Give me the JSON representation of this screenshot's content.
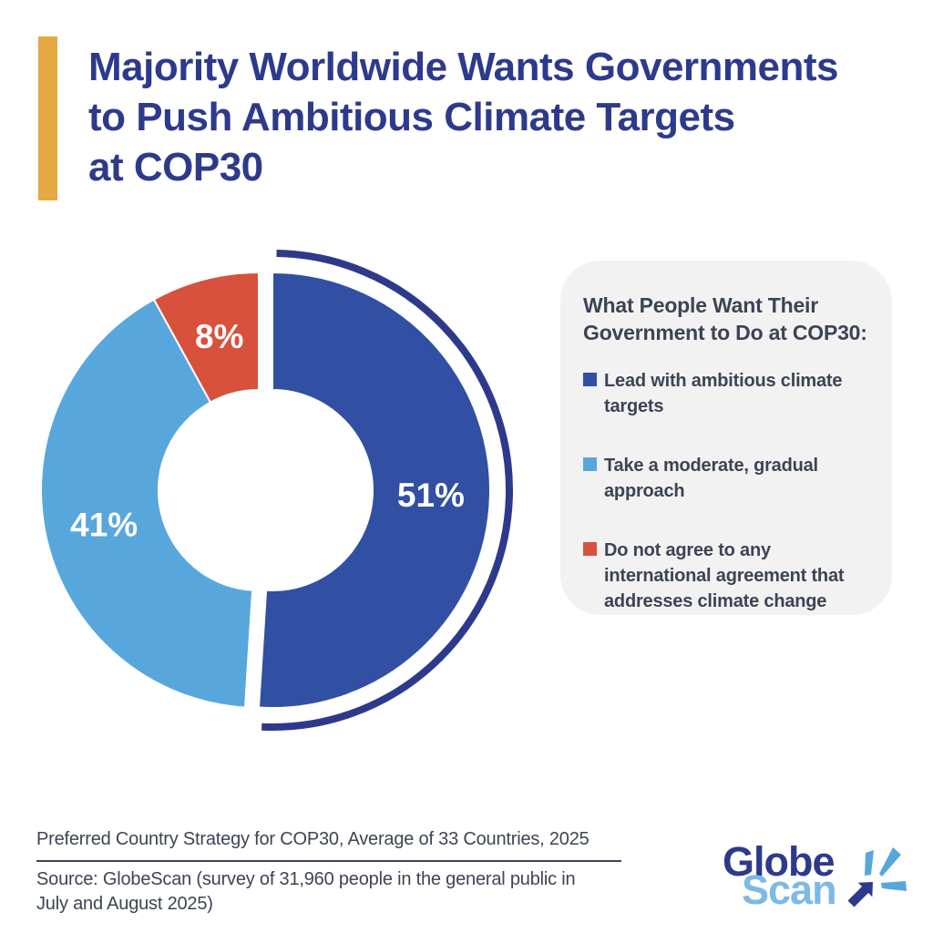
{
  "title": {
    "text": "Majority Worldwide Wants Governments\nto Push Ambitious Climate Targets\nat COP30"
  },
  "chart_data": {
    "type": "pie",
    "subtype": "donut",
    "title": "Preferred Country Strategy for COP30, Average of 33 Countries, 2025",
    "categories": [
      "Lead with ambitious climate targets",
      "Take a moderate, gradual approach",
      "Do not agree to any international agreement that addresses climate change"
    ],
    "values": [
      51,
      41,
      8
    ],
    "labels": [
      "51%",
      "41%",
      "8%"
    ],
    "colors": [
      "#3150a3",
      "#57a7dc",
      "#d8513c"
    ],
    "label_color": "#ffffff",
    "start_angle_deg": 0,
    "direction": "clockwise",
    "exploded_slice_index": 0,
    "emphasis_arc_slice_index": 0,
    "emphasis_arc_color": "#2d3a8c",
    "legend_position": "right"
  },
  "legend": {
    "title": "What People Want Their\nGovernment to Do at COP30:",
    "items": [
      {
        "label": "Lead with ambitious climate\ntargets",
        "color": "#3150a3"
      },
      {
        "label": "Take a moderate, gradual\napproach",
        "color": "#57a7dc"
      },
      {
        "label": "Do not agree to any\ninternational agreement that\naddresses climate change",
        "color": "#d8513c"
      }
    ]
  },
  "footer": {
    "caption": "Preferred Country Strategy for COP30, Average of 33 Countries, 2025",
    "source": "Source: GlobeScan (survey of 31,960 people in the general public in\nJuly and August 2025)"
  },
  "logo": {
    "word_top": "Globe",
    "word_bottom": "Scan"
  },
  "icons": {
    "logo_icon": "arrow-spark-icon"
  },
  "colors": {
    "accent_gold": "#e6a942",
    "title_navy": "#2d3a8c",
    "text_slate": "#3d4454",
    "legend_card_bg": "#f2f2f3",
    "logo_scan_blue": "#7cb9e6"
  }
}
